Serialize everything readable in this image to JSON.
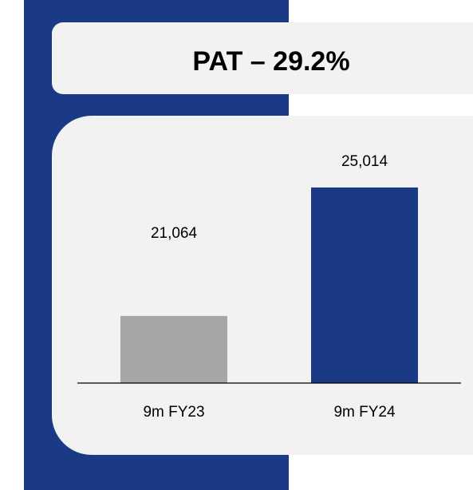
{
  "chart_data": {
    "type": "bar",
    "title": "PAT – 29.2%",
    "categories": [
      "9m FY23",
      "9m FY24"
    ],
    "values": [
      21064,
      25014
    ],
    "value_labels": [
      "21,064",
      "25,014"
    ],
    "colors": [
      "#a6a6a6",
      "#1a3a85"
    ],
    "ylim": [
      19000,
      27000
    ]
  }
}
